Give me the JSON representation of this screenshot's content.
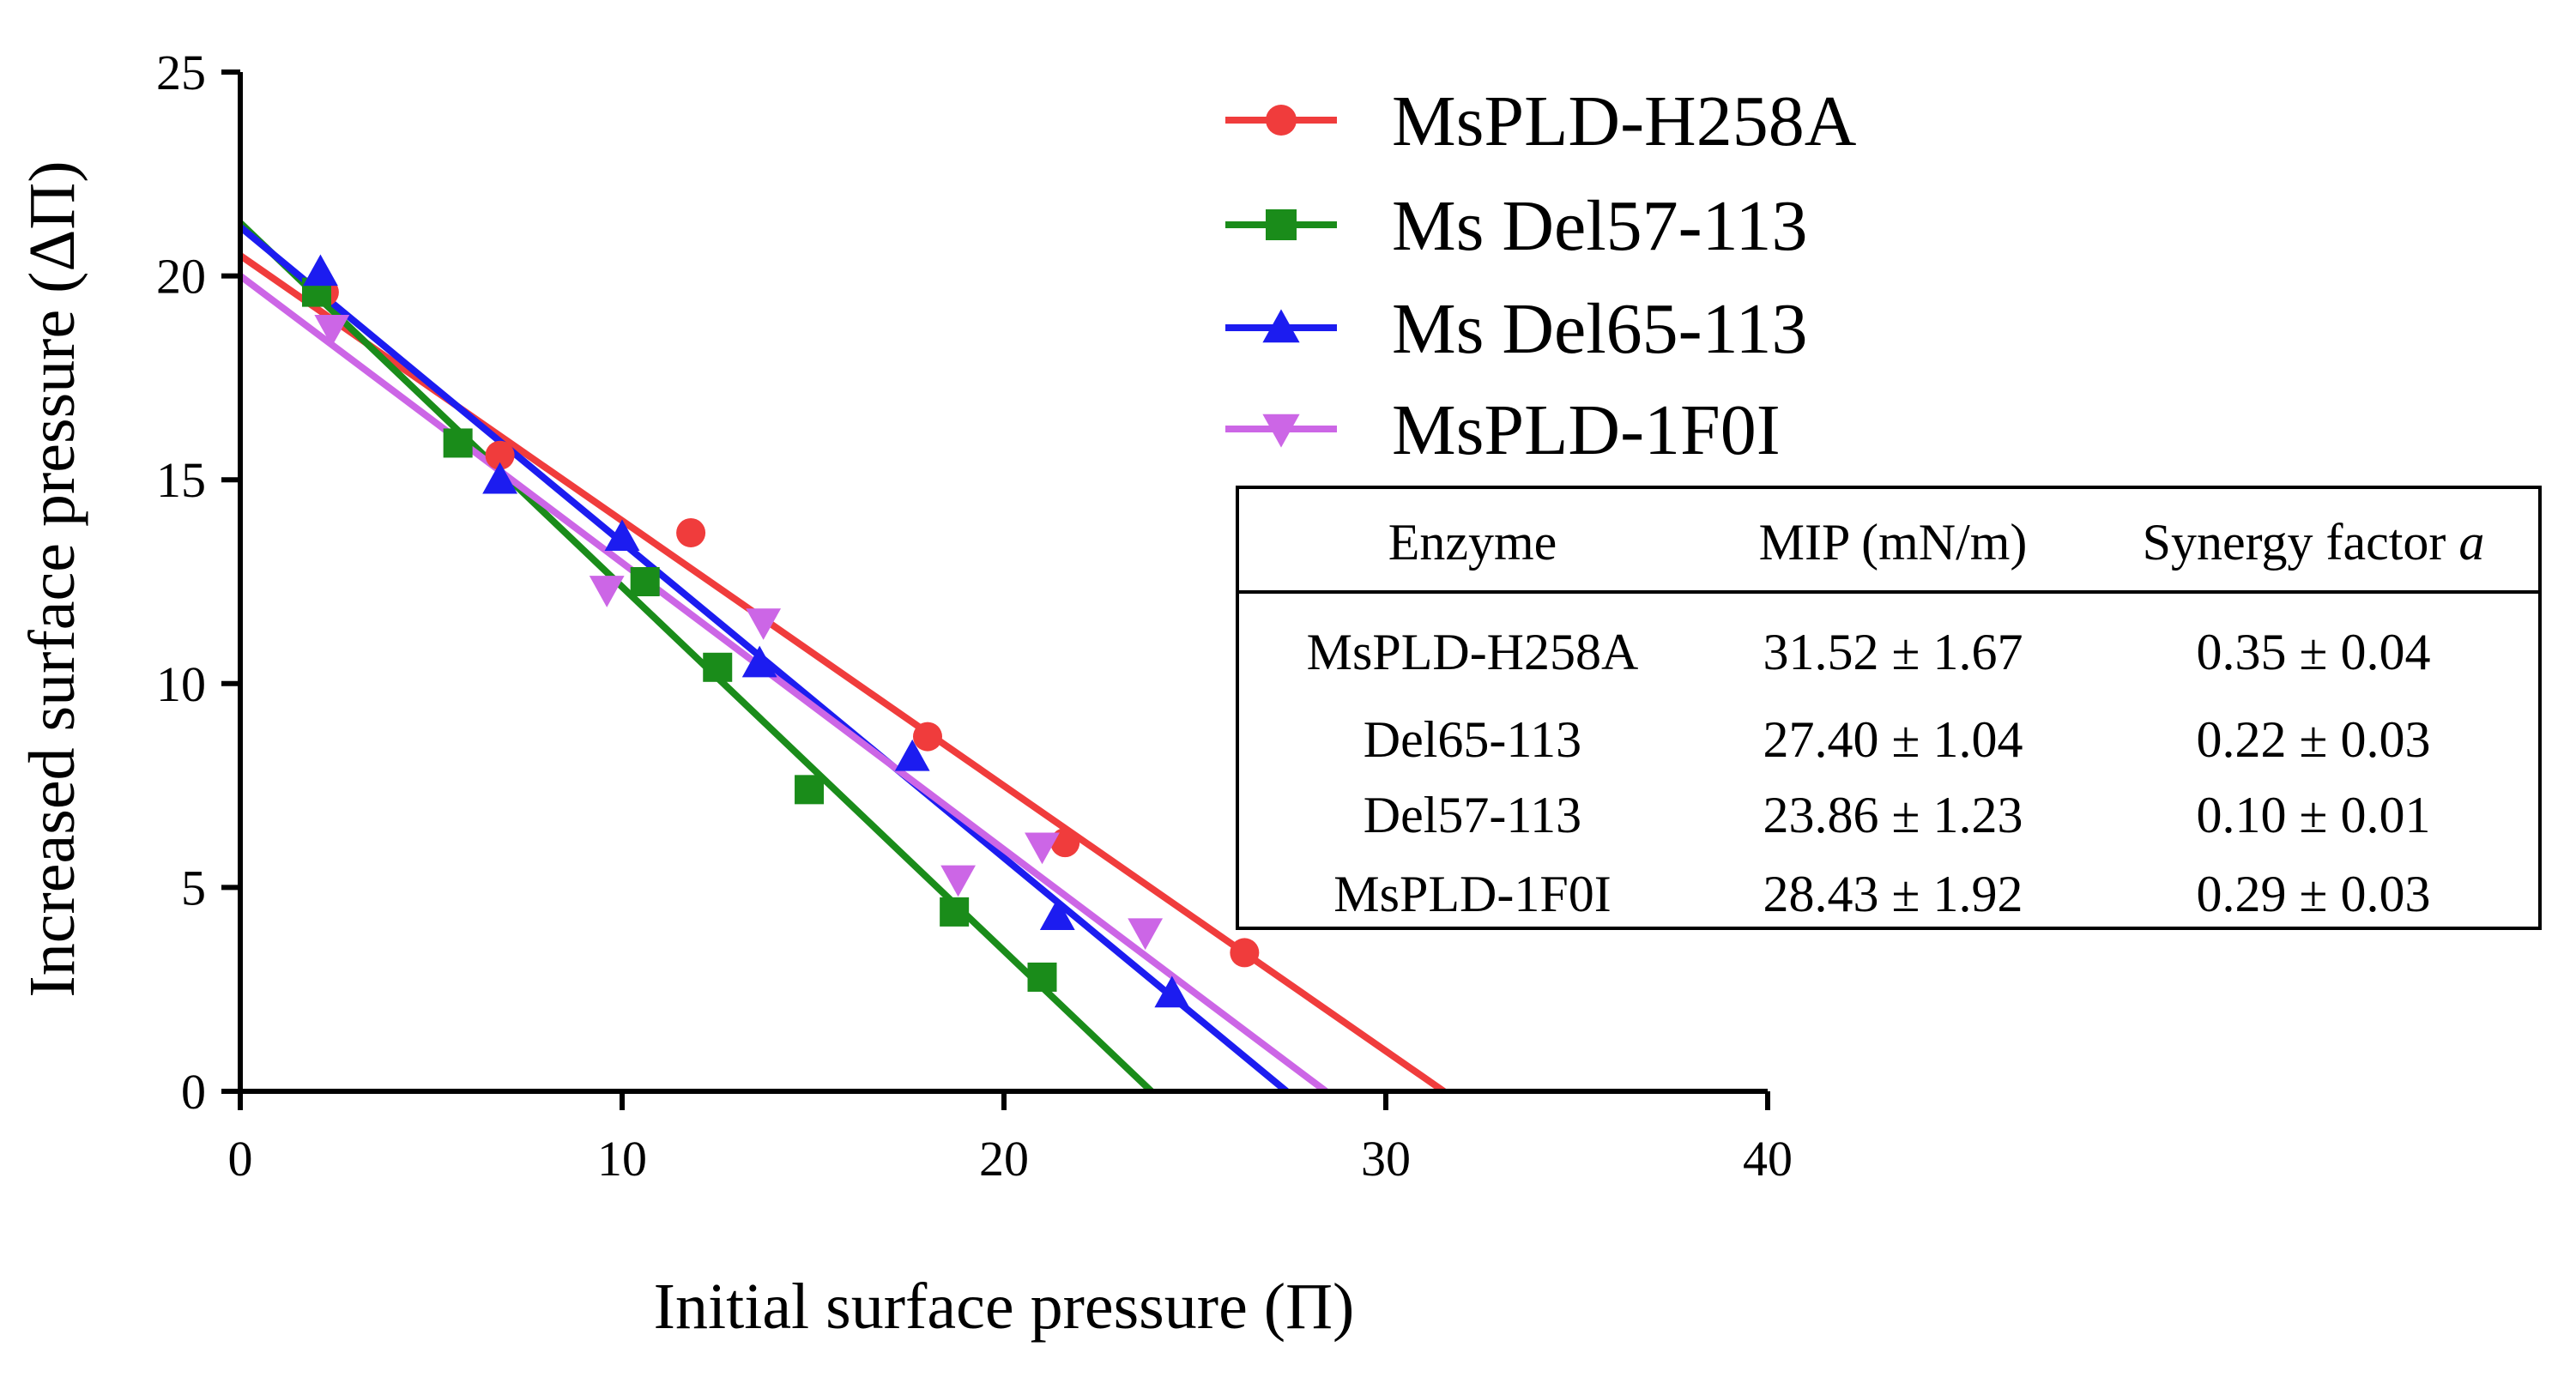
{
  "chart_data": {
    "type": "scatter",
    "xlabel": "Initial surface pressure (Π)",
    "ylabel": "Increased surface pressure (ΔΠ)",
    "xlim": [
      0,
      40
    ],
    "ylim": [
      0,
      25
    ],
    "xticks": [
      0,
      10,
      20,
      30,
      40
    ],
    "yticks": [
      0,
      5,
      10,
      15,
      20,
      25
    ],
    "legend_position": "top-right",
    "series": [
      {
        "name": "MsPLD-H258A",
        "color": "#f03c3c",
        "marker": "circle",
        "points": [
          [
            2.2,
            19.6
          ],
          [
            6.8,
            15.6
          ],
          [
            11.8,
            13.7
          ],
          [
            18.0,
            8.7
          ],
          [
            21.6,
            6.1
          ],
          [
            26.3,
            3.4
          ]
        ],
        "fit": [
          [
            0,
            20.5
          ],
          [
            31.52,
            0
          ]
        ]
      },
      {
        "name": "Ms Del57-113",
        "color": "#1a8c1a",
        "marker": "square",
        "points": [
          [
            2.0,
            19.6
          ],
          [
            5.7,
            15.9
          ],
          [
            10.6,
            12.5
          ],
          [
            12.5,
            10.4
          ],
          [
            14.9,
            7.4
          ],
          [
            18.7,
            4.4
          ],
          [
            21.0,
            2.8
          ]
        ],
        "fit": [
          [
            0,
            21.3
          ],
          [
            23.86,
            0
          ]
        ]
      },
      {
        "name": "Ms Del65-113",
        "color": "#1c1cf0",
        "marker": "triangle-up",
        "points": [
          [
            2.1,
            20.1
          ],
          [
            6.8,
            15.0
          ],
          [
            10.0,
            13.6
          ],
          [
            13.6,
            10.5
          ],
          [
            17.6,
            8.2
          ],
          [
            21.4,
            4.3
          ],
          [
            24.4,
            2.4
          ]
        ],
        "fit": [
          [
            0,
            21.2
          ],
          [
            27.4,
            0
          ]
        ]
      },
      {
        "name": "MsPLD-1F0I",
        "color": "#cc66e6",
        "marker": "triangle-down",
        "points": [
          [
            2.4,
            18.7
          ],
          [
            9.6,
            12.3
          ],
          [
            13.7,
            11.5
          ],
          [
            18.8,
            5.2
          ],
          [
            21.0,
            6.0
          ],
          [
            23.7,
            3.9
          ]
        ],
        "fit": [
          [
            0,
            20.0
          ],
          [
            28.43,
            0
          ]
        ]
      }
    ],
    "table": {
      "headers": [
        "Enzyme",
        "MIP (mN/m)",
        "Synergy factor"
      ],
      "header_italic_suffix": "a",
      "rows": [
        [
          "MsPLD-H258A",
          "31.52 ± 1.67",
          "0.35 ± 0.04"
        ],
        [
          "Del65-113",
          "27.40 ± 1.04",
          "0.22 ± 0.03"
        ],
        [
          "Del57-113",
          "23.86 ± 1.23",
          "0.10 ± 0.01"
        ],
        [
          "MsPLD-1F0I",
          "28.43 ± 1.92",
          "0.29 ± 0.03"
        ]
      ]
    }
  }
}
